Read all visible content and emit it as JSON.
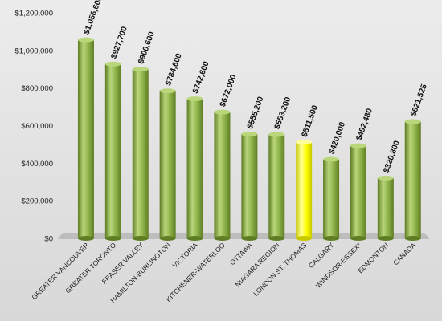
{
  "chart_data": {
    "type": "bar",
    "categories": [
      "GREATER VANCOUVER",
      "GREATER TORONTO",
      "FRASER VALLEY",
      "HAMILTON-BURLINGTON",
      "VICTORIA",
      "KITCHENER-WATERLOO",
      "OTTAWA",
      "NIAGARA REGION",
      "LONDON ST. THOMAS",
      "CALGARY",
      "WINDSOR-ESSEX*",
      "EDMONTON",
      "CANADA"
    ],
    "values": [
      1056600,
      927700,
      900600,
      784600,
      742600,
      672000,
      555200,
      553200,
      511500,
      420000,
      492480,
      320800,
      621525
    ],
    "value_labels": [
      "$1,056,600",
      "$927,700",
      "$900,600",
      "$784,600",
      "$742,600",
      "$672,000",
      "$555,200",
      "$553,200",
      "$511,500",
      "$420,000",
      "$492,480",
      "$320,800",
      "$621,525"
    ],
    "highlight_category": "LONDON ST. THOMAS",
    "ylim": [
      0,
      1200000
    ],
    "y_ticks": [
      0,
      200000,
      400000,
      600000,
      800000,
      1000000,
      1200000
    ],
    "y_tick_labels": [
      "$0",
      "$200,000",
      "$400,000",
      "$600,000",
      "$800,000",
      "$1,000,000",
      "$1,200,000"
    ],
    "grid": false,
    "legend": "none",
    "colors": {
      "bar": "#8fb34a",
      "bar_dark": "#5e7d24",
      "bar_light": "#b9d67a",
      "highlight": "#ffff00",
      "highlight_dark": "#c8c800",
      "highlight_light": "#ffff99",
      "floor": "#bdbdbd"
    },
    "title": "",
    "xlabel": "",
    "ylabel": ""
  }
}
